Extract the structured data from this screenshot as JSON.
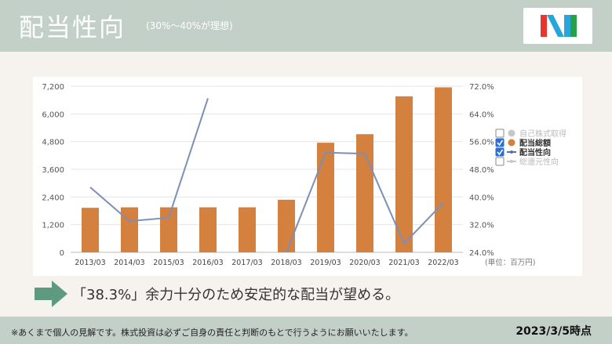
{
  "header": {
    "title": "配当性向",
    "subtitle": "(30%〜40%が理想)",
    "logo_colors": [
      "#e8362f",
      "#27a6d9",
      "#2aa149"
    ]
  },
  "chart_data": {
    "type": "bar+line",
    "categories": [
      "2013/03",
      "2014/03",
      "2015/03",
      "2016/03",
      "2017/03",
      "2018/03",
      "2019/03",
      "2020/03",
      "2021/03",
      "2022/03"
    ],
    "left_axis": {
      "ticks": [
        "7,200",
        "6,000",
        "4,800",
        "3,600",
        "2,400",
        "1,200",
        "0"
      ],
      "range": [
        0,
        7200
      ]
    },
    "right_axis": {
      "ticks": [
        "72.0%",
        "64.0%",
        "56.0%",
        "48.0%",
        "40.0%",
        "32.0%",
        "24.0%"
      ],
      "range": [
        24,
        72
      ]
    },
    "unit_label": "(単位：百万円)",
    "series": [
      {
        "name": "配当総額",
        "type": "bar",
        "axis": "left",
        "color": "#d4803e",
        "values": [
          1930,
          1950,
          1950,
          1950,
          1950,
          2280,
          4750,
          5120,
          6760,
          7150
        ]
      },
      {
        "name": "配当性向",
        "type": "line",
        "axis": "right",
        "color": "#7b8fb8",
        "values": [
          42.8,
          33.0,
          34.0,
          68.5,
          null,
          24.0,
          52.8,
          52.5,
          26.5,
          38.3
        ]
      }
    ],
    "legend": [
      {
        "label": "自己株式取得",
        "checked": false,
        "marker": "circle",
        "color": "#c8c8c8",
        "active": false
      },
      {
        "label": "配当総額",
        "checked": true,
        "marker": "circle",
        "color": "#d4803e",
        "active": true
      },
      {
        "label": "配当性向",
        "checked": true,
        "marker": "line",
        "color": "#5b6fa8",
        "active": true
      },
      {
        "label": "総還元性向",
        "checked": false,
        "marker": "line",
        "color": "#c8c8c8",
        "active": false
      }
    ],
    "legend_position": "right"
  },
  "message": "「38.3%」余力十分のため安定的な配当が望める。",
  "footer": {
    "disclaimer": "※あくまで個人の見解です。株式投資は必ずご自身の責任と判断のもとで行うようにお願いいたします。",
    "date": "2023/3/5時点"
  }
}
